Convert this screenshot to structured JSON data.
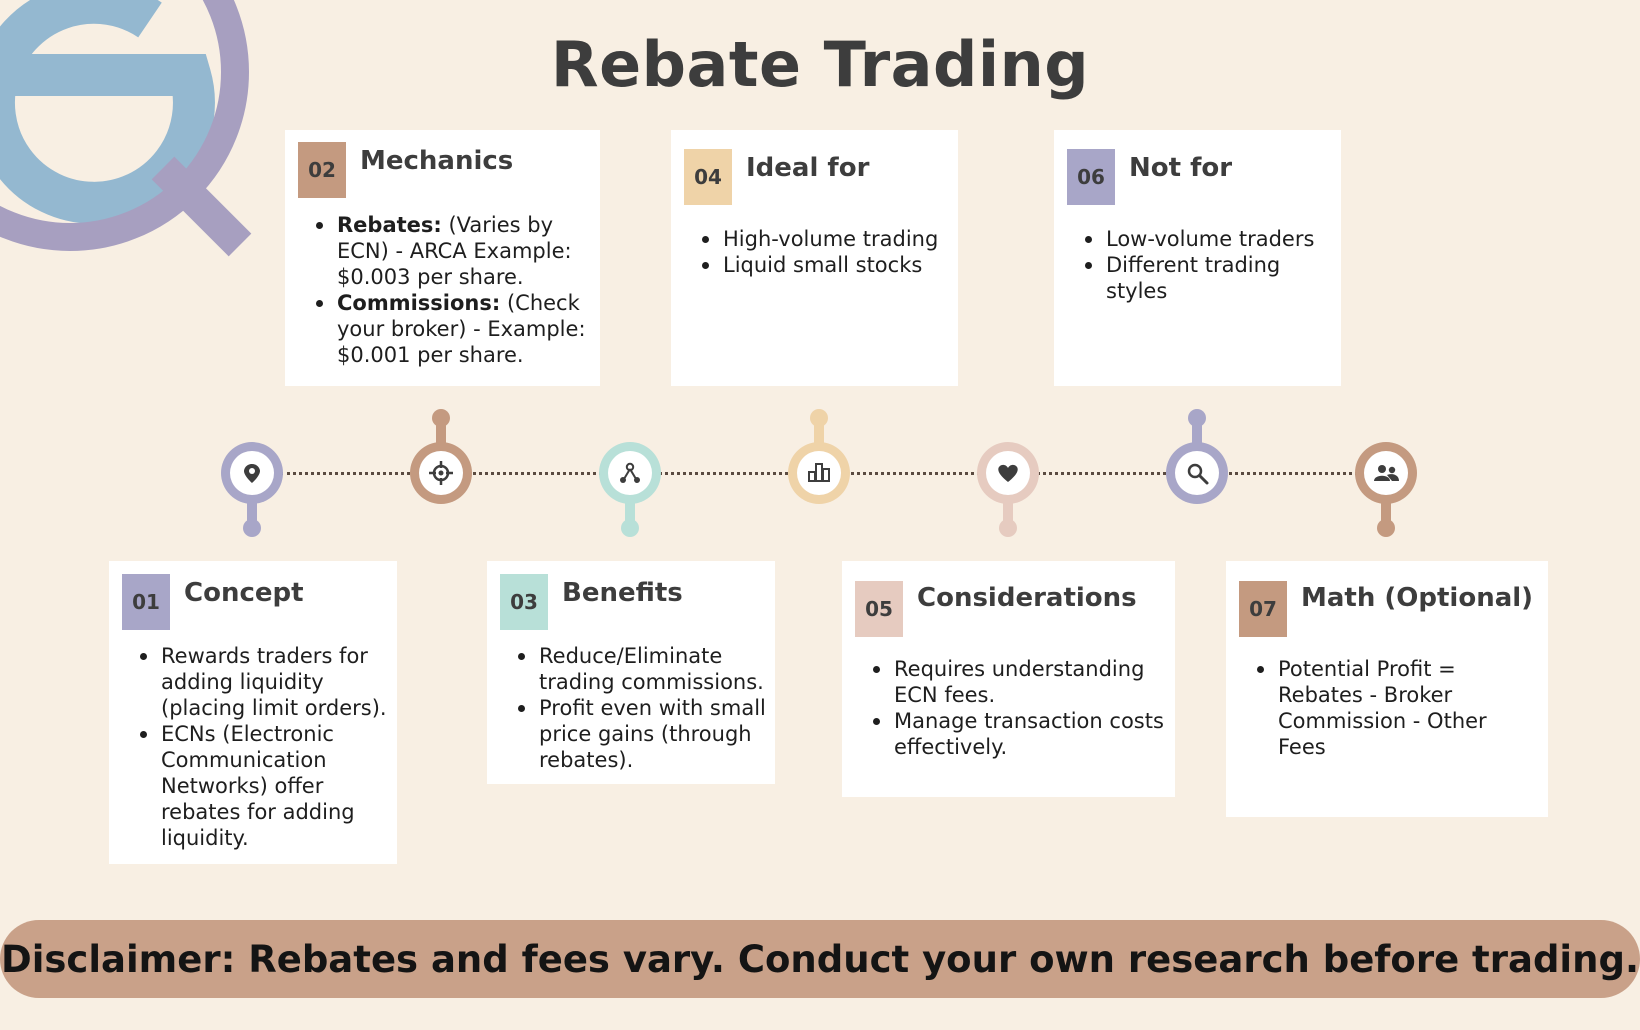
{
  "title": "Rebate Trading",
  "colors": {
    "background": "#f8efe3",
    "purple": "#a8a6c8",
    "brown": "#c49a80",
    "mint": "#b8e0d8",
    "sand": "#efd3a8",
    "blush": "#e6cbc0",
    "logo_blue": "#94b8d0",
    "logo_purple": "#a79fc0",
    "disclaimer_bg": "#c9a189"
  },
  "cards": {
    "concept": {
      "number": "01",
      "title": "Concept",
      "items": [
        "Rewards traders for adding liquidity (placing limit orders).",
        "ECNs (Electronic Communication Networks) offer rebates for adding liquidity."
      ]
    },
    "mechanics": {
      "number": "02",
      "title": "Mechanics",
      "items": [
        {
          "bold": "Rebates:",
          "text": " (Varies by ECN) - ARCA Example: $0.003 per share."
        },
        {
          "bold": "Commissions:",
          "text": " (Check your broker) - Example: $0.001 per share."
        }
      ]
    },
    "benefits": {
      "number": "03",
      "title": "Benefits",
      "items": [
        "Reduce/Eliminate trading commissions.",
        "Profit even with small price gains (through rebates)."
      ]
    },
    "ideal_for": {
      "number": "04",
      "title": "Ideal for",
      "items": [
        "High-volume trading",
        "Liquid small stocks"
      ]
    },
    "considerations": {
      "number": "05",
      "title": "Considerations",
      "items": [
        "Requires understanding ECN fees.",
        "Manage transaction costs effectively."
      ]
    },
    "not_for": {
      "number": "06",
      "title": "Not for",
      "items": [
        "Low-volume traders",
        "Different trading styles"
      ]
    },
    "math": {
      "number": "07",
      "title": "Math (Optional)",
      "items": [
        "Potential Profit = Rebates - Broker Commission - Other Fees"
      ]
    }
  },
  "timeline": {
    "nodes": [
      {
        "icon": "location-pin-icon",
        "color": "#a8a6c8",
        "stem": "down"
      },
      {
        "icon": "crosshair-icon",
        "color": "#c49a80",
        "stem": "up"
      },
      {
        "icon": "network-icon",
        "color": "#b8e0d8",
        "stem": "down"
      },
      {
        "icon": "bar-chart-icon",
        "color": "#efd3a8",
        "stem": "up"
      },
      {
        "icon": "heart-icon",
        "color": "#e6cbc0",
        "stem": "down"
      },
      {
        "icon": "magnifier-icon",
        "color": "#a8a6c8",
        "stem": "up"
      },
      {
        "icon": "people-icon",
        "color": "#c49a80",
        "stem": "down"
      }
    ]
  },
  "disclaimer": "Disclaimer: Rebates and fees vary. Conduct your own research before trading."
}
